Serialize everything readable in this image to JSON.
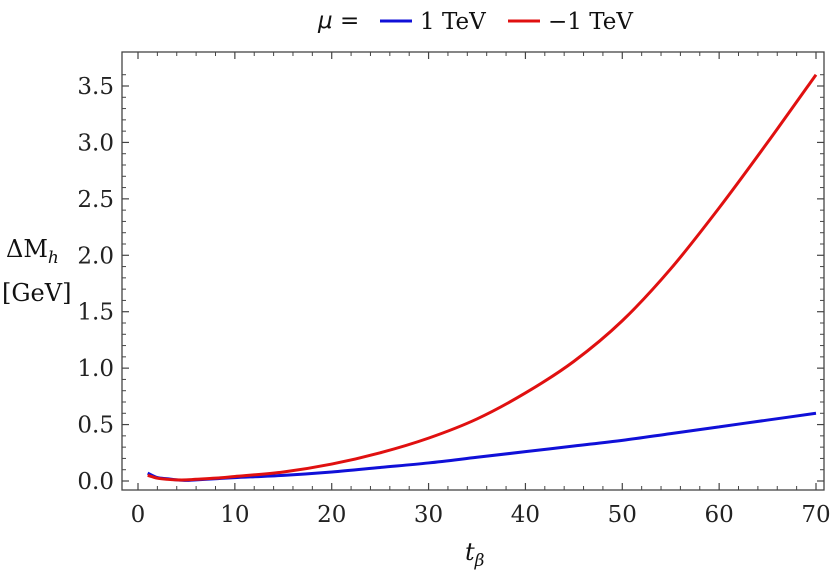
{
  "chart_data": {
    "type": "line",
    "xlabel": "t",
    "xlabel_sub": "β",
    "ylabel_line1": "ΔM",
    "ylabel_line1_sub": "h",
    "ylabel_line2": "[GeV]",
    "xlim": [
      0,
      70
    ],
    "ylim": [
      0,
      3.7
    ],
    "x_ticks": [
      0,
      10,
      20,
      30,
      40,
      50,
      60,
      70
    ],
    "x_tick_labels": [
      "0",
      "10",
      "20",
      "30",
      "40",
      "50",
      "60",
      "70"
    ],
    "y_ticks": [
      0,
      0.5,
      1.0,
      1.5,
      2.0,
      2.5,
      3.0,
      3.5
    ],
    "y_tick_labels": [
      "0.0",
      "0.5",
      "1.0",
      "1.5",
      "2.0",
      "2.5",
      "3.0",
      "3.5"
    ],
    "grid": false,
    "legend": {
      "title": "μ =",
      "placement": "top"
    },
    "series": [
      {
        "name": "1 TeV",
        "color": "#1010d8",
        "x": [
          1,
          2,
          3,
          4,
          5,
          6,
          8,
          10,
          15,
          20,
          25,
          30,
          35,
          40,
          45,
          50,
          55,
          60,
          65,
          70
        ],
        "y": [
          0.07,
          0.03,
          0.02,
          0.01,
          0.005,
          0.01,
          0.02,
          0.03,
          0.05,
          0.08,
          0.12,
          0.16,
          0.21,
          0.26,
          0.31,
          0.36,
          0.42,
          0.48,
          0.54,
          0.6
        ]
      },
      {
        "name": "−1 TeV",
        "color": "#e01010",
        "x": [
          1,
          2,
          3,
          4,
          5,
          6,
          8,
          10,
          15,
          20,
          25,
          30,
          35,
          40,
          45,
          50,
          55,
          60,
          65,
          70
        ],
        "y": [
          0.05,
          0.025,
          0.015,
          0.01,
          0.01,
          0.015,
          0.025,
          0.04,
          0.08,
          0.15,
          0.25,
          0.38,
          0.55,
          0.78,
          1.06,
          1.42,
          1.88,
          2.42,
          3.0,
          3.6
        ]
      }
    ]
  }
}
